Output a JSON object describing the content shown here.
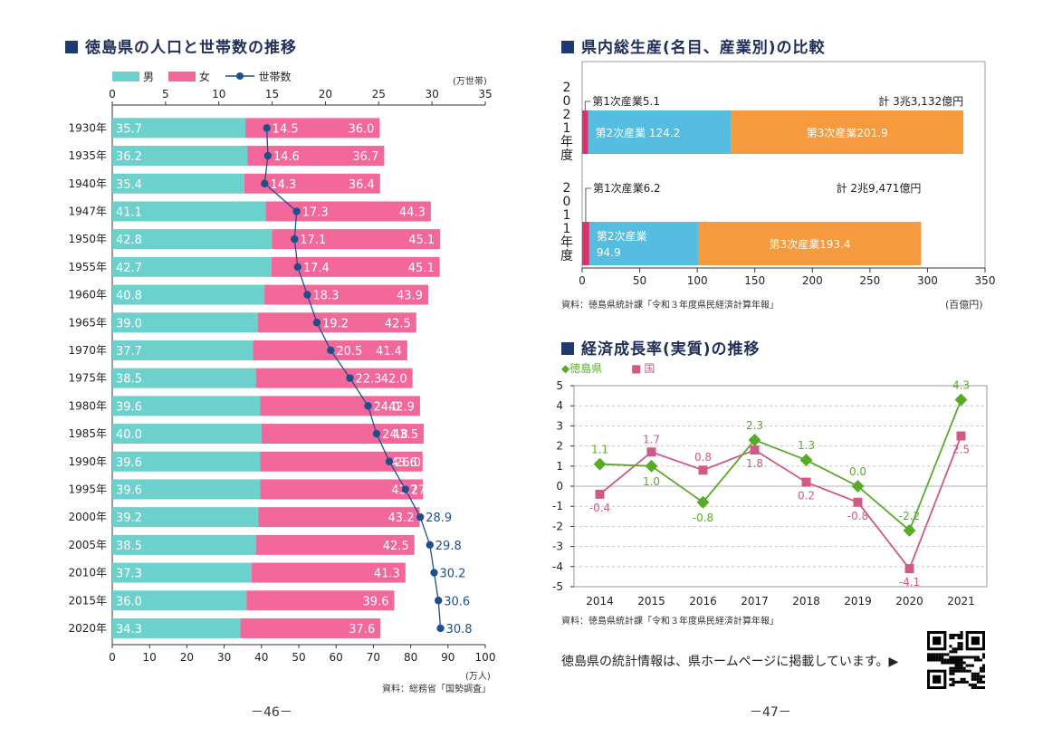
{
  "left": {
    "title": "徳島県の人口と世帯数の推移",
    "legend": {
      "male": "男",
      "female": "女",
      "households": "世帯数"
    },
    "top_axis_unit": "(万世帯)",
    "bottom_axis_unit": "(万人)",
    "source": "資料：総務省「国勢調査」",
    "page_number": "－46－"
  },
  "right": {
    "gdp": {
      "title": "県内総生産(名目、産業別)の比較",
      "source": "資料：徳島県統計課「令和３年度県民経済計算年報」",
      "unit": "(百億円)"
    },
    "growth": {
      "title": "経済成長率(実質)の推移",
      "legend": {
        "prefecture": "徳島県",
        "nation": "国"
      },
      "source": "資料：徳島県統計課「令和３年度県民経済計算年報」"
    },
    "footer_note": "徳島県の統計情報は、県ホームページに掲載しています。▶",
    "page_number": "－47－"
  },
  "colors": {
    "male": "#6cd0cc",
    "female": "#f2689a",
    "households": "#1f4e8c",
    "primary": "#d9336e",
    "secondary": "#55bde0",
    "tertiary": "#f59a3e",
    "pref_line": "#5aaa2a",
    "nation_line": "#d05a85",
    "heading": "#1f2f5a"
  },
  "chart_data": [
    {
      "id": "population",
      "type": "bar",
      "orientation": "horizontal-stacked",
      "categories": [
        "1930年",
        "1935年",
        "1940年",
        "1947年",
        "1950年",
        "1955年",
        "1960年",
        "1965年",
        "1970年",
        "1975年",
        "1980年",
        "1985年",
        "1990年",
        "1995年",
        "2000年",
        "2005年",
        "2010年",
        "2015年",
        "2020年"
      ],
      "series": [
        {
          "name": "男",
          "values": [
            35.7,
            36.2,
            35.4,
            41.1,
            42.8,
            42.7,
            40.8,
            39.0,
            37.7,
            38.5,
            39.6,
            40.0,
            39.6,
            39.6,
            39.2,
            38.5,
            37.3,
            36.0,
            34.3
          ],
          "labels": [
            "35.7",
            "36.2",
            "35.4",
            "41.1",
            "42.8",
            "42.7",
            "40.8",
            "39.0",
            "37.7",
            "38.5",
            "39.6",
            "40.0",
            "39.6",
            "39.6",
            "39.2",
            "38.5",
            "37.3",
            "36.0",
            "34.3"
          ]
        },
        {
          "name": "女",
          "values": [
            36.0,
            36.7,
            36.4,
            44.3,
            45.1,
            45.1,
            43.9,
            42.5,
            41.4,
            42.0,
            42.9,
            43.5,
            43.6,
            43.7,
            43.2,
            42.5,
            41.3,
            39.6,
            37.6
          ],
          "labels": [
            "36.0",
            "36.7",
            "36.4",
            "44.3",
            "45.1",
            "45.1",
            "43.9",
            "42.5",
            "41.4",
            "42.0",
            "42.9",
            "43.5",
            "43.6",
            "43.7",
            "43.2",
            "42.5",
            "41.3",
            "39.6",
            "37.6"
          ]
        },
        {
          "name": "世帯数",
          "type": "line",
          "axis": "top",
          "values": [
            14.5,
            14.6,
            14.3,
            17.3,
            17.1,
            17.4,
            18.3,
            19.2,
            20.5,
            22.3,
            24.0,
            24.8,
            26.0,
            27.5,
            28.9,
            29.8,
            30.2,
            30.6,
            30.8
          ],
          "labels": [
            "14.5",
            "14.6",
            "14.3",
            "17.3",
            "17.1",
            "17.4",
            "18.3",
            "19.2",
            "20.5",
            "22.3",
            "24.0",
            "24.8",
            "26.0",
            "27.5",
            "28.9",
            "29.8",
            "30.2",
            "30.6",
            "30.8"
          ]
        }
      ],
      "bottom_axis": {
        "range": [
          0,
          100
        ],
        "ticks": [
          "0",
          "10",
          "20",
          "30",
          "40",
          "50",
          "60",
          "70",
          "80",
          "90",
          "100"
        ],
        "unit": "(万人)"
      },
      "top_axis": {
        "range": [
          0,
          35
        ],
        "ticks": [
          "0",
          "5",
          "10",
          "15",
          "20",
          "25",
          "30",
          "35"
        ],
        "unit": "(万世帯)"
      }
    },
    {
      "id": "gdp",
      "type": "bar",
      "orientation": "horizontal-stacked",
      "categories": [
        "2\n0\n2\n1\n年\n度",
        "2\n0\n1\n1\n年\n度"
      ],
      "category_chars": [
        [
          "2",
          "0",
          "2",
          "1",
          "年",
          "度"
        ],
        [
          "2",
          "0",
          "1",
          "1",
          "年",
          "度"
        ]
      ],
      "series": [
        {
          "name": "第1次産業",
          "values": [
            5.1,
            6.2
          ]
        },
        {
          "name": "第2次産業",
          "values": [
            124.2,
            94.9
          ]
        },
        {
          "name": "第3次産業",
          "values": [
            201.9,
            193.4
          ]
        }
      ],
      "labels": {
        "primary": [
          "第1次産業5.1",
          "第1次産業6.2"
        ],
        "secondary": [
          "第2次産業 124.2",
          "第2次産業"
        ],
        "secondary_value": [
          "",
          "94.9"
        ],
        "tertiary": [
          "第3次産業201.9",
          "第3次産業193.4"
        ],
        "total": [
          "計 3兆3,132億円",
          "計 2兆9,471億円"
        ]
      },
      "x_axis": {
        "range": [
          0,
          350
        ],
        "ticks": [
          "0",
          "50",
          "100",
          "150",
          "200",
          "250",
          "300",
          "350"
        ],
        "unit": "(百億円)"
      }
    },
    {
      "id": "growth",
      "type": "line",
      "x": [
        "2014",
        "2015",
        "2016",
        "2017",
        "2018",
        "2019",
        "2020",
        "2021"
      ],
      "series": [
        {
          "name": "徳島県",
          "values": [
            1.1,
            1.0,
            -0.8,
            2.3,
            1.3,
            0.0,
            -2.2,
            4.3
          ],
          "labels": [
            "1.1",
            "1.0",
            "-0.8",
            "2.3",
            "1.3",
            "0.0",
            "-2.2",
            "4.3"
          ]
        },
        {
          "name": "国",
          "values": [
            -0.4,
            1.7,
            0.8,
            1.8,
            0.2,
            -0.8,
            -4.1,
            2.5
          ],
          "labels": [
            "-0.4",
            "1.7",
            "0.8",
            "1.8",
            "0.2",
            "-0.8",
            "-4.1",
            "2.5"
          ]
        }
      ],
      "ylim": [
        -5,
        5
      ],
      "y_ticks": [
        "5",
        "4",
        "3",
        "2",
        "1",
        "0",
        "-1",
        "-2",
        "-3",
        "-4",
        "-5"
      ]
    }
  ]
}
